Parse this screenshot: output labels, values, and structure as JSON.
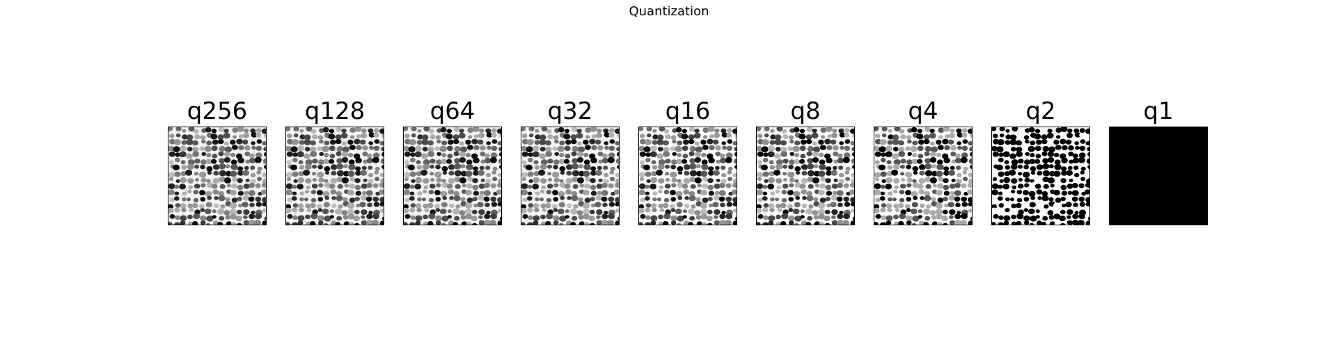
{
  "figure": {
    "title": "Quantization"
  },
  "panels": [
    {
      "label": "q256",
      "levels": 256
    },
    {
      "label": "q128",
      "levels": 128
    },
    {
      "label": "q64",
      "levels": 64
    },
    {
      "label": "q32",
      "levels": 32
    },
    {
      "label": "q16",
      "levels": 16
    },
    {
      "label": "q8",
      "levels": 8
    },
    {
      "label": "q4",
      "levels": 4
    },
    {
      "label": "q2",
      "levels": 2
    },
    {
      "label": "q1",
      "levels": 1
    }
  ],
  "colors": {
    "background": "#ffffff",
    "frame": "#000000"
  }
}
